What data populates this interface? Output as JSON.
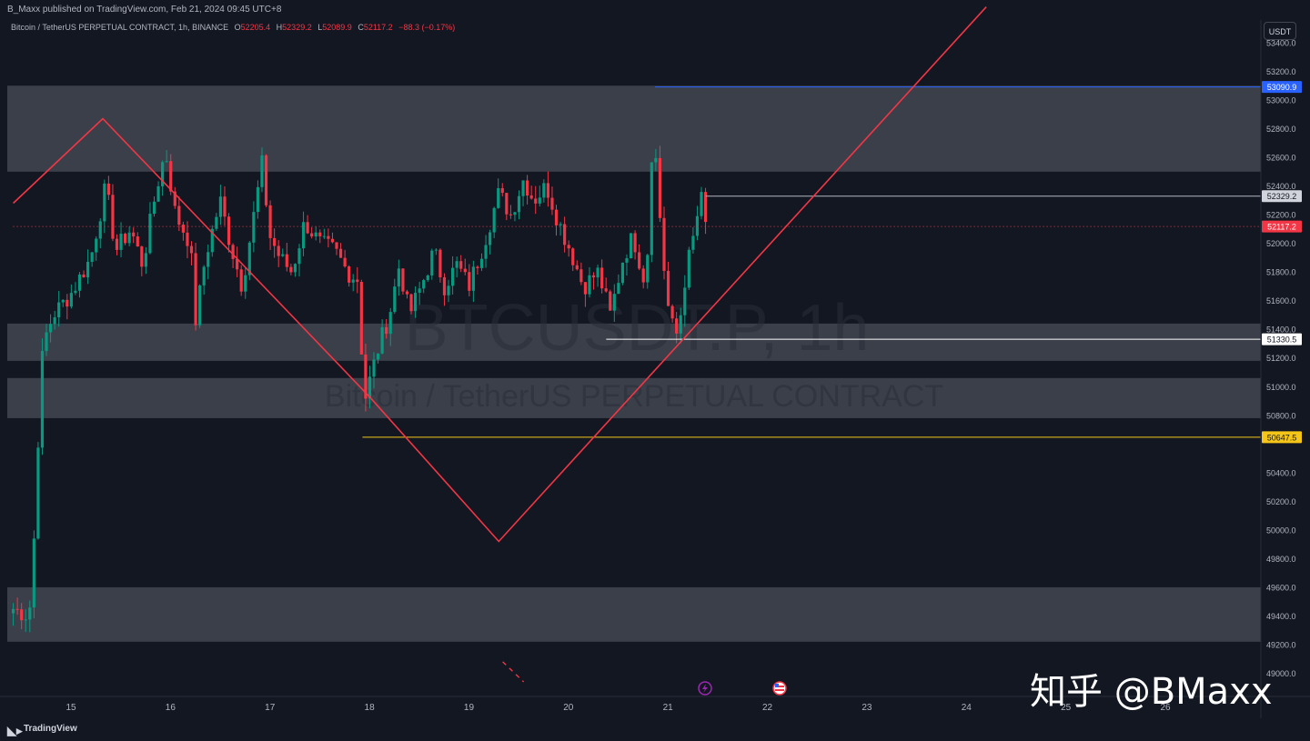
{
  "header": {
    "published_by": "B_Maxx published on TradingView.com, Feb 21, 2024 09:45 UTC+8"
  },
  "legend": {
    "symbol_desc": "Bitcoin / TetherUS PERPETUAL CONTRACT, 1h, BINANCE",
    "o_label": "O",
    "o_value": "52205.4",
    "h_label": "H",
    "h_value": "52329.2",
    "l_label": "L",
    "l_value": "52089.9",
    "c_label": "C",
    "c_value": "52117.2",
    "change": "−88.3 (−0.17%)"
  },
  "currency": "USDT",
  "watermark": {
    "line1": "BTCUSDT.P, 1h",
    "line2": "Bitcoin / TetherUS PERPETUAL CONTRACT"
  },
  "footer": {
    "brand": "TradingView"
  },
  "overlay_text": "知乎 @BMaxx",
  "colors": {
    "background": "#131722",
    "up": "#089981",
    "down": "#f23645",
    "zone": "#5d606b",
    "trendline": "#f23645",
    "level_blue": "#2962ff",
    "level_yellow": "#f5c518",
    "level_white": "#ffffff"
  },
  "chart_data": {
    "type": "candlestick",
    "ylim": [
      48950,
      53550
    ],
    "xlim": [
      14.42,
      26.6
    ],
    "y_ticks": [
      49000,
      49200,
      49400,
      49600,
      49800,
      50000,
      50200,
      50400,
      50600,
      50800,
      51000,
      51200,
      51400,
      51600,
      51800,
      52000,
      52200,
      52400,
      52600,
      52800,
      53000,
      53200,
      53400
    ],
    "x_ticks": [
      {
        "x": 15,
        "label": "15"
      },
      {
        "x": 16,
        "label": "16"
      },
      {
        "x": 17,
        "label": "17"
      },
      {
        "x": 18,
        "label": "18"
      },
      {
        "x": 19,
        "label": "19"
      },
      {
        "x": 20,
        "label": "20"
      },
      {
        "x": 21,
        "label": "21"
      },
      {
        "x": 22,
        "label": "22"
      },
      {
        "x": 23,
        "label": "23"
      },
      {
        "x": 24,
        "label": "24"
      },
      {
        "x": 25,
        "label": "25"
      },
      {
        "x": 26,
        "label": "26"
      }
    ],
    "zones": [
      {
        "from": 52500,
        "to": 53100
      },
      {
        "from": 51180,
        "to": 51440
      },
      {
        "from": 50780,
        "to": 51060
      },
      {
        "from": 49220,
        "to": 49600
      }
    ],
    "levels": [
      {
        "value": 53090.9,
        "label": "53090.9",
        "x_start": 20.87,
        "color": "#2962ff",
        "label_bg": "#2962ff",
        "label_fg": "#ffffff"
      },
      {
        "value": 52329.2,
        "label": "52329.2",
        "x_start": 21.38,
        "color": "#b2b5be",
        "label_bg": "#d1d4dc",
        "label_fg": "#131722"
      },
      {
        "value": 52117.2,
        "label": "52117.2",
        "x_start": 14.42,
        "color": "#f23645",
        "dotted": true,
        "label_bg": "#f23645",
        "label_fg": "#ffffff"
      },
      {
        "value": 51330.5,
        "label": "51330.5",
        "x_start": 20.38,
        "color": "#ffffff",
        "label_bg": "#ffffff",
        "label_fg": "#131722"
      },
      {
        "value": 50647.5,
        "label": "50647.5",
        "x_start": 17.93,
        "color": "#f5c518",
        "label_bg": "#f5c518",
        "label_fg": "#131722"
      }
    ],
    "trendline": [
      [
        14.42,
        52280
      ],
      [
        15.32,
        52870
      ],
      [
        18.0,
        50930
      ],
      [
        19.3,
        49920
      ],
      [
        24.2,
        53650
      ]
    ],
    "projection": [
      [
        19.34,
        49080
      ],
      [
        19.55,
        48940
      ]
    ],
    "anchors": [
      {
        "x": 18,
        "y": 50100,
        "note": "seg"
      },
      {
        "x": 19.05,
        "y": 51950,
        "note": "seg"
      },
      {
        "x": 20.0,
        "y": 51700,
        "note": "seg"
      },
      {
        "x": 20.85,
        "y": 53090,
        "note": "seg"
      },
      {
        "x": 21.38,
        "y": 52117,
        "note": "seg"
      }
    ],
    "path": [
      [
        14.42,
        49450
      ],
      [
        14.58,
        49400
      ],
      [
        14.62,
        49800
      ],
      [
        14.68,
        50800
      ],
      [
        14.72,
        51300
      ],
      [
        14.82,
        51500
      ],
      [
        15.0,
        51650
      ],
      [
        15.2,
        51900
      ],
      [
        15.35,
        52400
      ],
      [
        15.45,
        51950
      ],
      [
        15.6,
        52100
      ],
      [
        15.72,
        51850
      ],
      [
        15.85,
        52350
      ],
      [
        15.95,
        52650
      ],
      [
        16.05,
        52200
      ],
      [
        16.2,
        52000
      ],
      [
        16.25,
        51450
      ],
      [
        16.35,
        51900
      ],
      [
        16.5,
        52300
      ],
      [
        16.6,
        52000
      ],
      [
        16.72,
        51700
      ],
      [
        16.85,
        52250
      ],
      [
        16.92,
        52550
      ],
      [
        17.0,
        52050
      ],
      [
        17.1,
        51900
      ],
      [
        17.22,
        51800
      ],
      [
        17.35,
        52150
      ],
      [
        17.5,
        52000
      ],
      [
        17.65,
        51950
      ],
      [
        17.78,
        51800
      ],
      [
        17.88,
        51750
      ],
      [
        17.95,
        50900
      ],
      [
        18.08,
        51250
      ],
      [
        18.2,
        51500
      ],
      [
        18.3,
        51850
      ],
      [
        18.4,
        51500
      ],
      [
        18.52,
        51700
      ],
      [
        18.65,
        51950
      ],
      [
        18.75,
        51700
      ],
      [
        18.88,
        51850
      ],
      [
        19.0,
        51700
      ],
      [
        19.15,
        52000
      ],
      [
        19.3,
        52350
      ],
      [
        19.42,
        52200
      ],
      [
        19.55,
        52450
      ],
      [
        19.65,
        52300
      ],
      [
        19.78,
        52400
      ],
      [
        19.9,
        52150
      ],
      [
        20.02,
        51950
      ],
      [
        20.15,
        51700
      ],
      [
        20.3,
        51800
      ],
      [
        20.42,
        51500
      ],
      [
        20.55,
        51900
      ],
      [
        20.65,
        52050
      ],
      [
        20.78,
        51700
      ],
      [
        20.85,
        52850
      ],
      [
        20.95,
        51900
      ],
      [
        21.02,
        51450
      ],
      [
        21.1,
        51350
      ],
      [
        21.18,
        51800
      ],
      [
        21.26,
        52050
      ],
      [
        21.33,
        52330
      ],
      [
        21.38,
        52117
      ]
    ]
  }
}
